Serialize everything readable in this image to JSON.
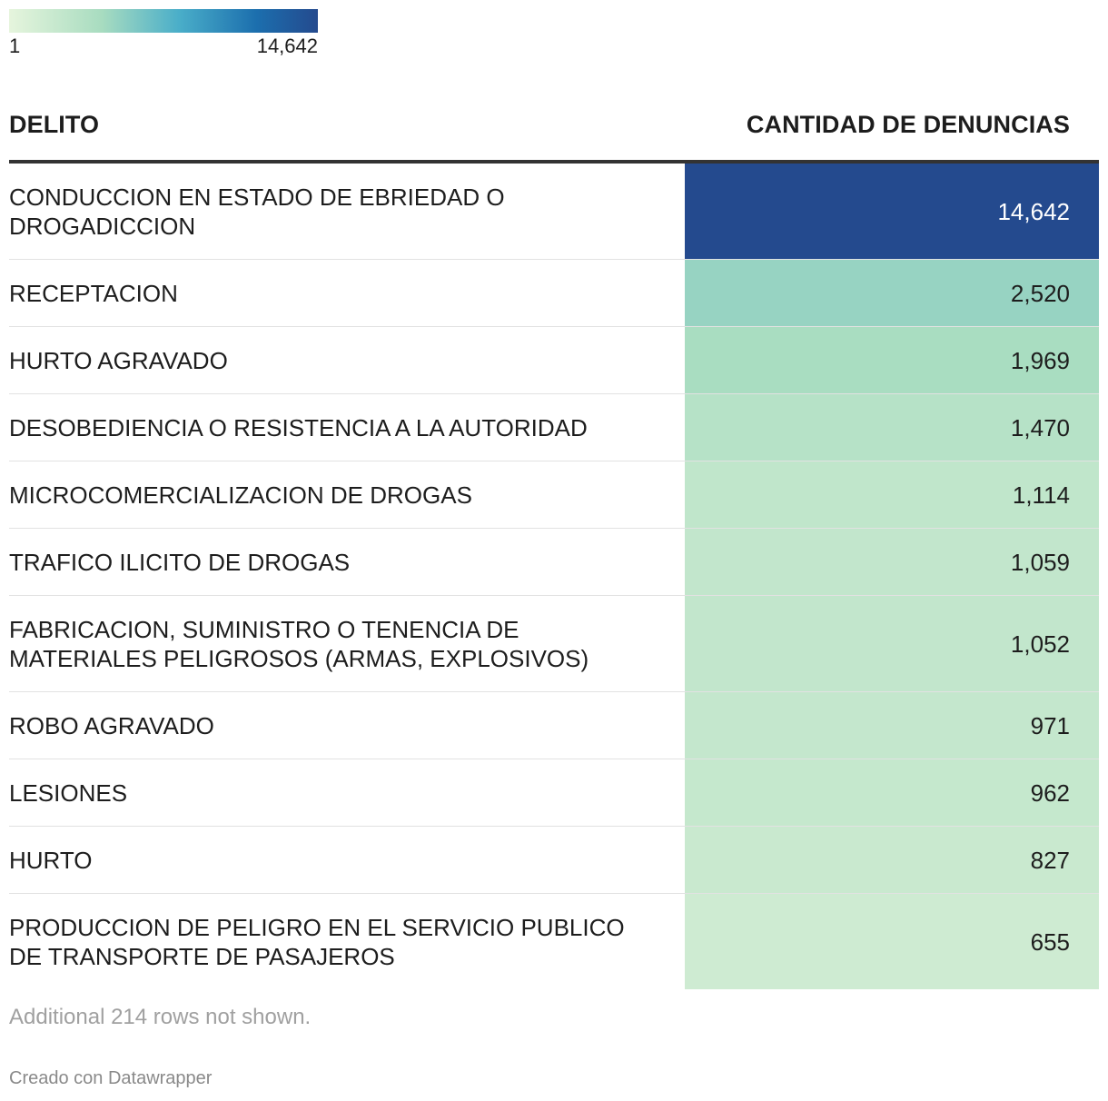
{
  "legend": {
    "min_label": "1",
    "max_label": "14,642",
    "colors": [
      "#e6f5dd",
      "#a8dcc0",
      "#4aaec9",
      "#1c6fae",
      "#244a8e"
    ]
  },
  "table": {
    "col_name_header": "DELITO",
    "col_value_header": "CANTIDAD DE DENUNCIAS",
    "rows": [
      {
        "name": "CONDUCCION EN ESTADO DE EBRIEDAD O DROGADICCION",
        "value_label": "14,642"
      },
      {
        "name": "RECEPTACION",
        "value_label": "2,520"
      },
      {
        "name": "HURTO AGRAVADO",
        "value_label": "1,969"
      },
      {
        "name": "DESOBEDIENCIA O RESISTENCIA A LA AUTORIDAD",
        "value_label": "1,470"
      },
      {
        "name": "MICROCOMERCIALIZACION DE DROGAS",
        "value_label": "1,114"
      },
      {
        "name": "TRAFICO ILICITO DE DROGAS",
        "value_label": "1,059"
      },
      {
        "name": "FABRICACION, SUMINISTRO O TENENCIA DE MATERIALES PELIGROSOS (ARMAS, EXPLOSIVOS)",
        "value_label": "1,052"
      },
      {
        "name": "ROBO AGRAVADO",
        "value_label": "971"
      },
      {
        "name": "LESIONES",
        "value_label": "962"
      },
      {
        "name": "HURTO",
        "value_label": "827"
      },
      {
        "name": "PRODUCCION DE PELIGRO EN EL SERVICIO PUBLICO DE TRANSPORTE DE PASAJEROS",
        "value_label": "655"
      }
    ]
  },
  "footer": {
    "note": "Additional 214 rows not shown.",
    "credit": "Creado con Datawrapper"
  },
  "chart_data": {
    "type": "table",
    "title": "",
    "columns": [
      "DELITO",
      "CANTIDAD DE DENUNCIAS"
    ],
    "categories": [
      "CONDUCCION EN ESTADO DE EBRIEDAD O DROGADICCION",
      "RECEPTACION",
      "HURTO AGRAVADO",
      "DESOBEDIENCIA O RESISTENCIA A LA AUTORIDAD",
      "MICROCOMERCIALIZACION DE DROGAS",
      "TRAFICO ILICITO DE DROGAS",
      "FABRICACION, SUMINISTRO O TENENCIA DE MATERIALES PELIGROSOS (ARMAS, EXPLOSIVOS)",
      "ROBO AGRAVADO",
      "LESIONES",
      "HURTO",
      "PRODUCCION DE PELIGRO EN EL SERVICIO PUBLICO DE TRANSPORTE DE PASAJEROS"
    ],
    "values": [
      14642,
      2520,
      1969,
      1470,
      1114,
      1059,
      1052,
      971,
      962,
      827,
      655
    ],
    "color_scale": {
      "min": 1,
      "max": 14642
    }
  }
}
